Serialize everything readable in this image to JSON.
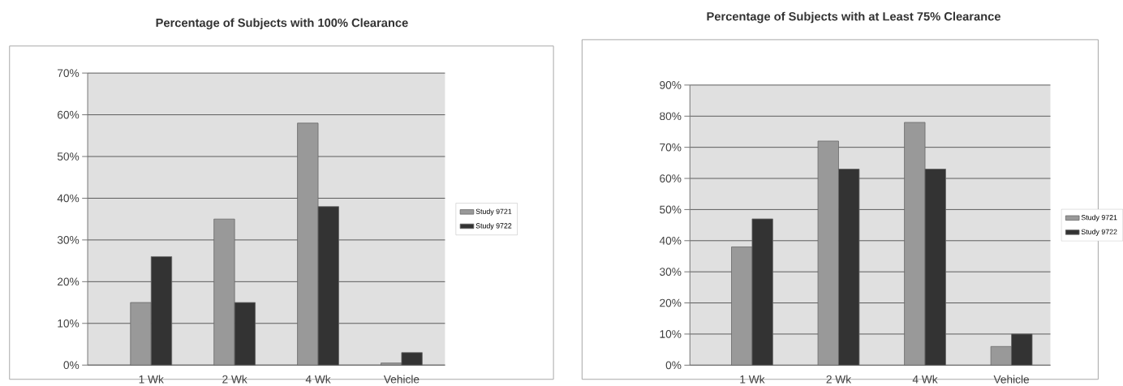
{
  "chart_data": [
    {
      "type": "bar",
      "title": "Percentage of Subjects with 100% Clearance",
      "categories": [
        "1 Wk",
        "2 Wk",
        "4 Wk",
        "Vehicle"
      ],
      "series": [
        {
          "name": "Study 9721",
          "color": "#999999",
          "values": [
            15,
            35,
            58,
            0.5
          ]
        },
        {
          "name": "Study 9722",
          "color": "#333333",
          "values": [
            26,
            15,
            38,
            3
          ]
        }
      ],
      "ylim": [
        0,
        70
      ],
      "yticks": [
        {
          "value": 0,
          "label": "0%"
        },
        {
          "value": 10,
          "label": "10%"
        },
        {
          "value": 20,
          "label": "20%"
        },
        {
          "value": 30,
          "label": "30%"
        },
        {
          "value": 40,
          "label": "40%"
        },
        {
          "value": 50,
          "label": "50%"
        },
        {
          "value": 60,
          "label": "60%"
        },
        {
          "value": 70,
          "label": "70%"
        }
      ],
      "grid": "y",
      "legend": "right"
    },
    {
      "type": "bar",
      "title": "Percentage of Subjects with at Least 75% Clearance",
      "categories": [
        "1 Wk",
        "2 Wk",
        "4 Wk",
        "Vehicle"
      ],
      "series": [
        {
          "name": "Study 9721",
          "color": "#999999",
          "values": [
            38,
            72,
            78,
            6
          ]
        },
        {
          "name": "Study 9722",
          "color": "#333333",
          "values": [
            47,
            63,
            63,
            10
          ]
        }
      ],
      "ylim": [
        0,
        90
      ],
      "yticks": [
        {
          "value": 0,
          "label": "0%"
        },
        {
          "value": 10,
          "label": "10%"
        },
        {
          "value": 20,
          "label": "20%"
        },
        {
          "value": 30,
          "label": "30%"
        },
        {
          "value": 40,
          "label": "40%"
        },
        {
          "value": 50,
          "label": "50%"
        },
        {
          "value": 60,
          "label": "60%"
        },
        {
          "value": 70,
          "label": "70%"
        },
        {
          "value": 80,
          "label": "80%"
        },
        {
          "value": 90,
          "label": "90%"
        }
      ],
      "grid": "y",
      "legend": "right"
    }
  ]
}
